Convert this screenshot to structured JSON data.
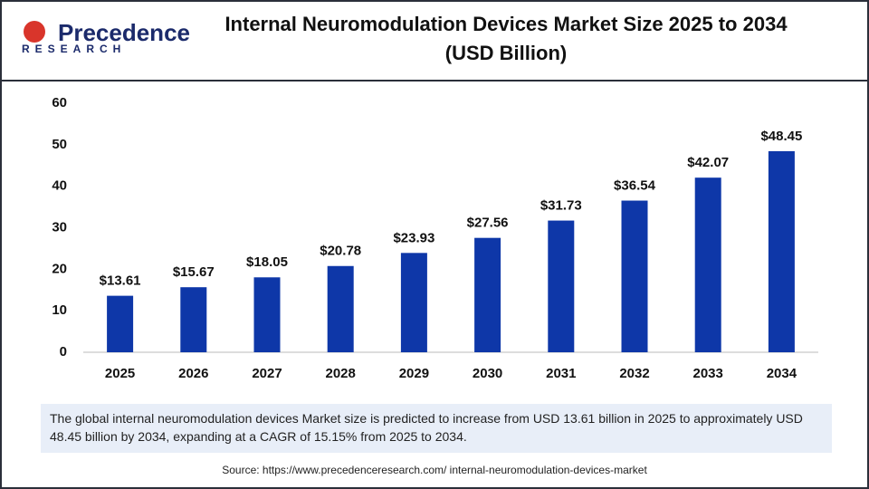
{
  "logo": {
    "name": "Precedence",
    "tagline": "RESEARCH"
  },
  "chart_data": {
    "type": "bar",
    "title": "Internal Neuromodulation Devices Market Size 2025 to 2034",
    "subtitle": "(USD Billion)",
    "categories": [
      "2025",
      "2026",
      "2027",
      "2028",
      "2029",
      "2030",
      "2031",
      "2032",
      "2033",
      "2034"
    ],
    "values": [
      13.61,
      15.67,
      18.05,
      20.78,
      23.93,
      27.56,
      31.73,
      36.54,
      42.07,
      48.45
    ],
    "value_labels": [
      "$13.61",
      "$15.67",
      "$18.05",
      "$20.78",
      "$23.93",
      "$27.56",
      "$31.73",
      "$36.54",
      "$42.07",
      "$48.45"
    ],
    "color": "#0e37a8",
    "ylim": [
      0,
      60
    ],
    "yticks": [
      0,
      10,
      20,
      30,
      40,
      50,
      60
    ],
    "grid": false,
    "note": "The global internal neuromodulation devices Market  size is predicted to increase from USD 13.61 billion in 2025 to approximately USD 48.45 billion by 2034, expanding at a CAGR of 15.15% from 2025 to 2034.",
    "source": "Source: https://www.precedenceresearch.com/ internal-neuromodulation-devices-market"
  }
}
